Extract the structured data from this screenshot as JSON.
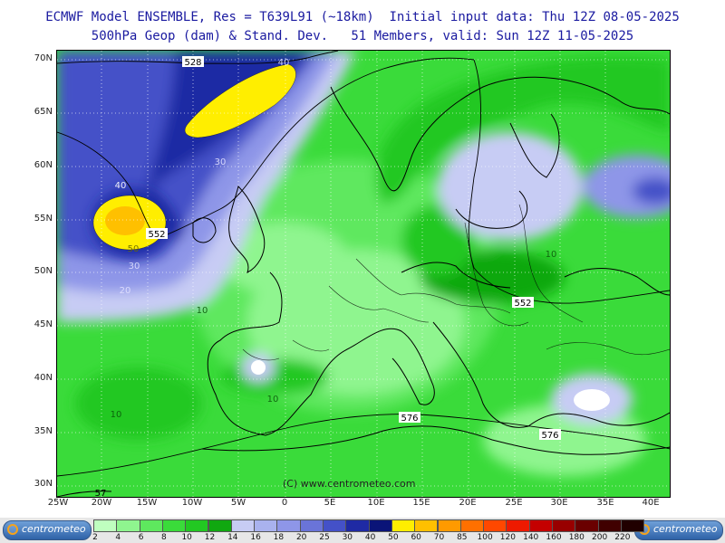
{
  "header": {
    "line1": "ECMWF Model ENSEMBLE, Res = T639L91 (~18km)  Initial input data: Thu 12Z 08-05-2025",
    "line2": "500hPa Geop (dam) & Stand. Dev.   51 Members, valid: Sun 12Z 11-05-2025"
  },
  "map": {
    "lat_labels": [
      "70N",
      "65N",
      "60N",
      "55N",
      "50N",
      "45N",
      "40N",
      "35N",
      "30N"
    ],
    "lon_labels": [
      "25W",
      "20W",
      "15W",
      "10W",
      "5W",
      "0",
      "5E",
      "10E",
      "15E",
      "20E",
      "25E",
      "30E",
      "35E",
      "40E"
    ],
    "contour_labels": {
      "c528": "528",
      "c552a": "552",
      "c552b": "552",
      "c576a": "576",
      "c576b": "576",
      "c57x": "57"
    },
    "stdev_labels": {
      "s40a": "40",
      "s40b": "40",
      "s30a": "30",
      "s30b": "30",
      "s50": "50",
      "s20": "20",
      "s10a": "10",
      "s10b": "10",
      "s10c": "10",
      "s10d": "10"
    },
    "copyright": "(C) www.centrometeo.com"
  },
  "legend": {
    "logo_text_left": "centrometeo",
    "logo_text_right": "centrometeo",
    "levels": [
      "2",
      "4",
      "6",
      "8",
      "10",
      "12",
      "14",
      "16",
      "18",
      "20",
      "25",
      "30",
      "40",
      "50",
      "60",
      "70",
      "85",
      "100",
      "120",
      "140",
      "160",
      "180",
      "200",
      "220"
    ],
    "colors": [
      "#bfffbf",
      "#8ff58f",
      "#5ee85e",
      "#3adb3a",
      "#22c822",
      "#10a810",
      "#c7ccf4",
      "#a9b2ee",
      "#8e96e8",
      "#6a74d8",
      "#4451c8",
      "#1f2aa4",
      "#0a1478",
      "#ffee00",
      "#ffc000",
      "#ff9a00",
      "#ff7000",
      "#ff4800",
      "#ee1a00",
      "#c40000",
      "#980000",
      "#6a0000",
      "#400000",
      "#200000"
    ]
  }
}
